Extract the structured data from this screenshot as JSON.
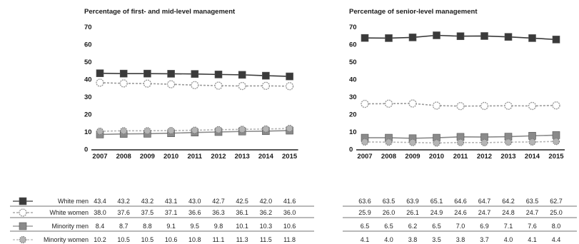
{
  "chart_data": [
    {
      "type": "line",
      "title": "Percentage of first- and mid-level management",
      "x": [
        "2007",
        "2008",
        "2009",
        "2010",
        "2011",
        "2012",
        "2013",
        "2014",
        "2015"
      ],
      "ylim": [
        0,
        70
      ],
      "yticks": [
        0,
        10,
        20,
        30,
        40,
        50,
        60,
        70
      ],
      "grid": false,
      "legend": "left-table",
      "series": [
        {
          "name": "White men",
          "values": [
            43.4,
            43.2,
            43.2,
            43.1,
            43.0,
            42.7,
            42.5,
            42.0,
            41.6
          ],
          "labels": [
            "43.4",
            "43.2",
            "43.2",
            "43.1",
            "43.0",
            "42.7",
            "42.5",
            "42.0",
            "41.6"
          ],
          "color": "#3a3a3a",
          "marker": "square"
        },
        {
          "name": "White women",
          "values": [
            38.0,
            37.6,
            37.5,
            37.1,
            36.6,
            36.3,
            36.1,
            36.2,
            36.0
          ],
          "labels": [
            "38.0",
            "37.6",
            "37.5",
            "37.1",
            "36.6",
            "36.3",
            "36.1",
            "36.2",
            "36.0"
          ],
          "color": "#9a9a9a",
          "marker": "circle"
        },
        {
          "name": "Minority men",
          "values": [
            8.4,
            8.7,
            8.8,
            9.1,
            9.5,
            9.8,
            10.1,
            10.3,
            10.6
          ],
          "labels": [
            "8.4",
            "8.7",
            "8.8",
            "9.1",
            "9.5",
            "9.8",
            "10.1",
            "10.3",
            "10.6"
          ],
          "color": "#8a8a8a",
          "marker": "square"
        },
        {
          "name": "Minority women",
          "values": [
            10.2,
            10.5,
            10.5,
            10.6,
            10.8,
            11.1,
            11.3,
            11.5,
            11.8
          ],
          "labels": [
            "10.2",
            "10.5",
            "10.5",
            "10.6",
            "10.8",
            "11.1",
            "11.3",
            "11.5",
            "11.8"
          ],
          "color": "#b5b5b5",
          "marker": "diamond"
        }
      ]
    },
    {
      "type": "line",
      "title": "Percentage of senior-level management",
      "x": [
        "2007",
        "2008",
        "2009",
        "2010",
        "2011",
        "2012",
        "2013",
        "2014",
        "2015"
      ],
      "ylim": [
        0,
        70
      ],
      "yticks": [
        0,
        10,
        20,
        30,
        40,
        50,
        60,
        70
      ],
      "grid": false,
      "legend": "none",
      "series": [
        {
          "name": "White men",
          "values": [
            63.6,
            63.5,
            63.9,
            65.1,
            64.6,
            64.7,
            64.2,
            63.5,
            62.7
          ],
          "labels": [
            "63.6",
            "63.5",
            "63.9",
            "65.1",
            "64.6",
            "64.7",
            "64.2",
            "63.5",
            "62.7"
          ],
          "color": "#3a3a3a",
          "marker": "square"
        },
        {
          "name": "White women",
          "values": [
            25.9,
            26.0,
            26.1,
            24.9,
            24.6,
            24.7,
            24.8,
            24.7,
            25.0
          ],
          "labels": [
            "25.9",
            "26.0",
            "26.1",
            "24.9",
            "24.6",
            "24.7",
            "24.8",
            "24.7",
            "25.0"
          ],
          "color": "#9a9a9a",
          "marker": "circle"
        },
        {
          "name": "Minority men",
          "values": [
            6.5,
            6.5,
            6.2,
            6.5,
            7.0,
            6.9,
            7.1,
            7.6,
            8.0
          ],
          "labels": [
            "6.5",
            "6.5",
            "6.2",
            "6.5",
            "7.0",
            "6.9",
            "7.1",
            "7.6",
            "8.0"
          ],
          "color": "#8a8a8a",
          "marker": "square"
        },
        {
          "name": "Minority women",
          "values": [
            4.1,
            4.0,
            3.8,
            3.5,
            3.8,
            3.7,
            4.0,
            4.1,
            4.4
          ],
          "labels": [
            "4.1",
            "4.0",
            "3.8",
            "3.5",
            "3.8",
            "3.7",
            "4.0",
            "4.1",
            "4.4"
          ],
          "color": "#b5b5b5",
          "marker": "diamond"
        }
      ]
    }
  ]
}
